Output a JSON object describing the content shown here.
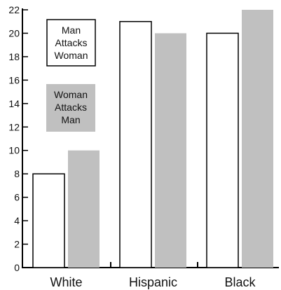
{
  "chart_data": {
    "type": "bar",
    "categories": [
      "White",
      "Hispanic",
      "Black"
    ],
    "series": [
      {
        "name": "Man Attacks Woman",
        "lines": [
          "Man",
          "Attacks",
          "Woman"
        ],
        "values": [
          8,
          21,
          20
        ],
        "color": "#ffffff",
        "stroke": "#000000"
      },
      {
        "name": "Woman Attacks Man",
        "lines": [
          "Woman",
          "Attacks",
          "Man"
        ],
        "values": [
          10,
          20,
          22
        ],
        "color": "#c0c0c0",
        "stroke": "none"
      }
    ],
    "ylim": [
      0,
      22
    ],
    "yticks": [
      0,
      2,
      4,
      6,
      8,
      10,
      12,
      14,
      16,
      18,
      20,
      22
    ],
    "xlabel": "",
    "ylabel": "",
    "title": "",
    "legend": "top-left",
    "grid": false
  }
}
